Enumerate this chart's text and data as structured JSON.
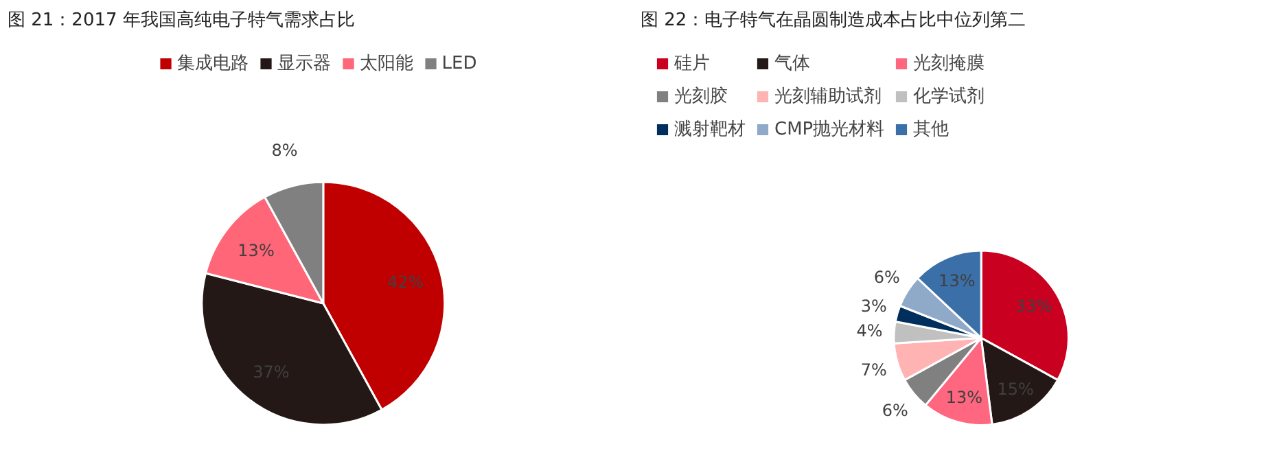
{
  "chart_data": [
    {
      "type": "pie",
      "title": "图 21：2017 年我国高纯电子特气需求占比",
      "categories": [
        "集成电路",
        "显示器",
        "太阳能",
        "LED"
      ],
      "values": [
        42,
        37,
        13,
        8
      ],
      "value_labels": [
        "42%",
        "37%",
        "13%",
        "8%"
      ],
      "colors": [
        "#c00000",
        "#231815",
        "#ff6677",
        "#808080"
      ],
      "legend": "top"
    },
    {
      "type": "pie",
      "title": "图 22：电子特气在晶圆制造成本占比中位列第二",
      "categories": [
        "硅片",
        "气体",
        "光刻掩膜",
        "光刻胶",
        "光刻辅助试剂",
        "化学试剂",
        "溅射靶材",
        "CMP抛光材料",
        "其他"
      ],
      "values": [
        33,
        15,
        13,
        6,
        7,
        4,
        3,
        6,
        13
      ],
      "value_labels": [
        "33%",
        "15%",
        "13%",
        "6%",
        "7%",
        "4%",
        "3%",
        "6%",
        "13%"
      ],
      "colors": [
        "#c9001f",
        "#231815",
        "#ff6680",
        "#808080",
        "#ffb3b3",
        "#c0c0c0",
        "#002f5e",
        "#8faac8",
        "#3a6fa8"
      ],
      "legend": "top left"
    }
  ]
}
